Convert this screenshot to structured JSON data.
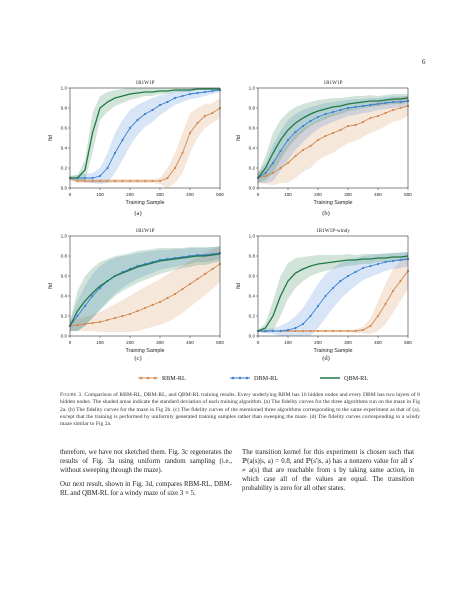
{
  "page": {
    "number": "6"
  },
  "legend": {
    "items": [
      {
        "label": "RBM-RL",
        "color": "#d4884d",
        "marker": "dot"
      },
      {
        "label": "DBM-RL",
        "color": "#3a7fd4",
        "marker": "dot"
      },
      {
        "label": "QBM-RL",
        "color": "#1f7a45",
        "marker": "none"
      }
    ]
  },
  "caption": {
    "label": "Figure 3.",
    "text": "Comparison of RBM-RL, DBM-RL, and QBM-RL training results. Every underlying RBM has 16 hidden nodes and every DBM has two layers of 8 hidden nodes. The shaded areas indicate the standard deviation of each training algorithm. (a) The fidelity curves for the three algorithms run on the maze in Fig 2a. (b) The fidelity curves for the maze in Fig 2b. (c) The fidelity curves of the mentioned three algorithms corresponding to the same experiment as that of (a), except that the training is performed by uniformly generated training samples rather than sweeping the maze. (d) The fidelity curves corresponding to a windy maze similar to Fig 2a."
  },
  "body": {
    "left": [
      "therefore, we have not sketched them. Fig. 3c regenerates the results of Fig. 3a using uniform random sampling (i.e., without sweeping through the maze).",
      "Our next result, shown in Fig. 3d, compares RBM-RL, DBM-RL and QBM-RL for a windy maze of size 3 × 5."
    ],
    "right": [
      "The transition kernel for this experiment is chosen such that ℙ(a(s)|s, a) = 0.8, and ℙ(s′|s, a) has a nonzero value for all s′ ≠ a(s) that are reachable from s by taking same action, in which case all of the values are equal. The transition probability is zero for all other states."
    ]
  },
  "chart_data": [
    {
      "panel_label": "(a)",
      "type": "line",
      "title": "1R1W1P",
      "xlabel": "Training Sample",
      "ylabel": "fid",
      "xlim": [
        0,
        500
      ],
      "ylim": [
        0,
        1.0
      ],
      "xticks": [
        "0",
        "100",
        "200",
        "300",
        "400",
        "500"
      ],
      "yticks": [
        "0.0",
        "0.2",
        "0.4",
        "0.6",
        "0.8",
        "1.0"
      ],
      "x": [
        0,
        25,
        50,
        75,
        100,
        125,
        150,
        175,
        200,
        225,
        250,
        275,
        300,
        325,
        350,
        375,
        400,
        425,
        450,
        475,
        500
      ],
      "series": [
        {
          "name": "RBM-RL",
          "values": [
            0.1,
            0.07,
            0.07,
            0.07,
            0.07,
            0.07,
            0.07,
            0.07,
            0.07,
            0.07,
            0.07,
            0.07,
            0.07,
            0.1,
            0.2,
            0.35,
            0.55,
            0.65,
            0.72,
            0.75,
            0.8
          ],
          "sd": [
            0.02,
            0.02,
            0.02,
            0.02,
            0.02,
            0.02,
            0.02,
            0.02,
            0.02,
            0.02,
            0.02,
            0.02,
            0.03,
            0.1,
            0.15,
            0.2,
            0.2,
            0.15,
            0.12,
            0.1,
            0.1
          ]
        },
        {
          "name": "DBM-RL",
          "values": [
            0.1,
            0.1,
            0.1,
            0.1,
            0.12,
            0.2,
            0.35,
            0.48,
            0.6,
            0.68,
            0.74,
            0.78,
            0.83,
            0.86,
            0.9,
            0.92,
            0.94,
            0.95,
            0.96,
            0.97,
            0.98
          ],
          "sd": [
            0.02,
            0.03,
            0.04,
            0.05,
            0.08,
            0.15,
            0.2,
            0.2,
            0.18,
            0.15,
            0.13,
            0.12,
            0.1,
            0.08,
            0.07,
            0.06,
            0.05,
            0.05,
            0.04,
            0.03,
            0.02
          ]
        },
        {
          "name": "QBM-RL",
          "values": [
            0.1,
            0.1,
            0.18,
            0.55,
            0.8,
            0.86,
            0.9,
            0.92,
            0.94,
            0.95,
            0.96,
            0.96,
            0.97,
            0.97,
            0.98,
            0.98,
            0.98,
            0.99,
            0.99,
            0.99,
            0.99
          ],
          "sd": [
            0.02,
            0.03,
            0.1,
            0.2,
            0.12,
            0.1,
            0.08,
            0.07,
            0.06,
            0.05,
            0.04,
            0.04,
            0.03,
            0.03,
            0.02,
            0.02,
            0.02,
            0.01,
            0.01,
            0.01,
            0.01
          ]
        }
      ]
    },
    {
      "panel_label": "(b)",
      "type": "line",
      "title": "1R1W1P",
      "xlabel": "Training Sample",
      "ylabel": "fid",
      "xlim": [
        0,
        500
      ],
      "ylim": [
        0,
        1.0
      ],
      "xticks": [
        "0",
        "100",
        "200",
        "300",
        "400",
        "500"
      ],
      "yticks": [
        "0.0",
        "0.2",
        "0.4",
        "0.6",
        "0.8",
        "1.0"
      ],
      "x": [
        0,
        25,
        50,
        75,
        100,
        125,
        150,
        175,
        200,
        225,
        250,
        275,
        300,
        325,
        350,
        375,
        400,
        425,
        450,
        475,
        500
      ],
      "series": [
        {
          "name": "RBM-RL",
          "values": [
            0.1,
            0.12,
            0.15,
            0.2,
            0.25,
            0.32,
            0.38,
            0.42,
            0.48,
            0.52,
            0.55,
            0.58,
            0.62,
            0.63,
            0.66,
            0.7,
            0.72,
            0.75,
            0.78,
            0.8,
            0.82
          ],
          "sd": [
            0.05,
            0.08,
            0.12,
            0.15,
            0.2,
            0.22,
            0.22,
            0.22,
            0.2,
            0.2,
            0.2,
            0.18,
            0.17,
            0.16,
            0.15,
            0.15,
            0.14,
            0.13,
            0.12,
            0.12,
            0.1
          ]
        },
        {
          "name": "DBM-RL",
          "values": [
            0.1,
            0.15,
            0.25,
            0.37,
            0.48,
            0.56,
            0.62,
            0.67,
            0.71,
            0.74,
            0.76,
            0.78,
            0.8,
            0.81,
            0.82,
            0.83,
            0.84,
            0.85,
            0.86,
            0.86,
            0.87
          ],
          "sd": [
            0.05,
            0.1,
            0.18,
            0.2,
            0.2,
            0.18,
            0.16,
            0.14,
            0.12,
            0.11,
            0.1,
            0.09,
            0.08,
            0.08,
            0.07,
            0.07,
            0.06,
            0.06,
            0.06,
            0.05,
            0.05
          ]
        },
        {
          "name": "QBM-RL",
          "values": [
            0.1,
            0.2,
            0.35,
            0.48,
            0.58,
            0.65,
            0.7,
            0.74,
            0.77,
            0.79,
            0.81,
            0.82,
            0.84,
            0.85,
            0.86,
            0.87,
            0.87,
            0.88,
            0.89,
            0.89,
            0.9
          ],
          "sd": [
            0.05,
            0.12,
            0.2,
            0.2,
            0.18,
            0.16,
            0.14,
            0.12,
            0.11,
            0.1,
            0.09,
            0.08,
            0.07,
            0.07,
            0.06,
            0.06,
            0.05,
            0.05,
            0.05,
            0.05,
            0.04
          ]
        }
      ]
    },
    {
      "panel_label": "(c)",
      "type": "line",
      "title": "1R1W1P",
      "xlabel": "Training Sample",
      "ylabel": "fid",
      "xlim": [
        0,
        500
      ],
      "ylim": [
        0,
        1.0
      ],
      "xticks": [
        "0",
        "100",
        "200",
        "300",
        "400",
        "500"
      ],
      "yticks": [
        "0.0",
        "0.2",
        "0.4",
        "0.6",
        "0.8",
        "1.0"
      ],
      "x": [
        0,
        25,
        50,
        75,
        100,
        125,
        150,
        175,
        200,
        225,
        250,
        275,
        300,
        325,
        350,
        375,
        400,
        425,
        450,
        475,
        500
      ],
      "series": [
        {
          "name": "RBM-RL",
          "values": [
            0.1,
            0.11,
            0.12,
            0.13,
            0.14,
            0.16,
            0.18,
            0.2,
            0.22,
            0.25,
            0.28,
            0.31,
            0.34,
            0.38,
            0.42,
            0.47,
            0.52,
            0.57,
            0.62,
            0.67,
            0.72
          ],
          "sd": [
            0.05,
            0.06,
            0.07,
            0.08,
            0.1,
            0.12,
            0.14,
            0.16,
            0.18,
            0.2,
            0.21,
            0.22,
            0.23,
            0.24,
            0.24,
            0.24,
            0.23,
            0.22,
            0.21,
            0.2,
            0.18
          ]
        },
        {
          "name": "DBM-RL",
          "values": [
            0.1,
            0.2,
            0.3,
            0.4,
            0.48,
            0.55,
            0.6,
            0.64,
            0.67,
            0.7,
            0.72,
            0.74,
            0.76,
            0.77,
            0.78,
            0.79,
            0.8,
            0.81,
            0.81,
            0.82,
            0.83
          ],
          "sd": [
            0.05,
            0.15,
            0.2,
            0.22,
            0.22,
            0.2,
            0.18,
            0.16,
            0.14,
            0.13,
            0.12,
            0.11,
            0.1,
            0.09,
            0.09,
            0.08,
            0.08,
            0.07,
            0.07,
            0.07,
            0.06
          ]
        },
        {
          "name": "QBM-RL",
          "values": [
            0.1,
            0.25,
            0.35,
            0.43,
            0.5,
            0.55,
            0.6,
            0.63,
            0.66,
            0.69,
            0.71,
            0.73,
            0.75,
            0.76,
            0.77,
            0.78,
            0.79,
            0.8,
            0.8,
            0.81,
            0.82
          ],
          "sd": [
            0.05,
            0.2,
            0.25,
            0.25,
            0.24,
            0.22,
            0.2,
            0.18,
            0.17,
            0.16,
            0.15,
            0.14,
            0.13,
            0.12,
            0.11,
            0.1,
            0.1,
            0.09,
            0.09,
            0.08,
            0.08
          ]
        }
      ]
    },
    {
      "panel_label": "(d)",
      "type": "line",
      "title": "1R1W1P-windy",
      "xlabel": "Training Sample",
      "ylabel": "fid",
      "xlim": [
        0,
        500
      ],
      "ylim": [
        0,
        1.0
      ],
      "xticks": [
        "0",
        "100",
        "200",
        "300",
        "400",
        "500"
      ],
      "yticks": [
        "0.0",
        "0.2",
        "0.4",
        "0.6",
        "0.8",
        "1.0"
      ],
      "x": [
        0,
        25,
        50,
        75,
        100,
        125,
        150,
        175,
        200,
        225,
        250,
        275,
        300,
        325,
        350,
        375,
        400,
        425,
        450,
        475,
        500
      ],
      "series": [
        {
          "name": "RBM-RL",
          "values": [
            0.05,
            0.05,
            0.05,
            0.05,
            0.05,
            0.05,
            0.05,
            0.05,
            0.05,
            0.05,
            0.05,
            0.05,
            0.05,
            0.05,
            0.06,
            0.1,
            0.2,
            0.32,
            0.45,
            0.55,
            0.65
          ],
          "sd": [
            0.01,
            0.01,
            0.01,
            0.01,
            0.01,
            0.01,
            0.01,
            0.01,
            0.01,
            0.01,
            0.01,
            0.01,
            0.01,
            0.02,
            0.03,
            0.08,
            0.15,
            0.2,
            0.22,
            0.2,
            0.18
          ]
        },
        {
          "name": "DBM-RL",
          "values": [
            0.05,
            0.05,
            0.05,
            0.05,
            0.06,
            0.08,
            0.12,
            0.2,
            0.3,
            0.4,
            0.48,
            0.55,
            0.6,
            0.64,
            0.68,
            0.7,
            0.72,
            0.74,
            0.75,
            0.76,
            0.77
          ],
          "sd": [
            0.01,
            0.02,
            0.03,
            0.05,
            0.08,
            0.12,
            0.16,
            0.2,
            0.22,
            0.22,
            0.2,
            0.18,
            0.16,
            0.14,
            0.12,
            0.11,
            0.1,
            0.09,
            0.08,
            0.08,
            0.07
          ]
        },
        {
          "name": "QBM-RL",
          "values": [
            0.05,
            0.08,
            0.2,
            0.4,
            0.55,
            0.63,
            0.67,
            0.7,
            0.72,
            0.73,
            0.74,
            0.75,
            0.76,
            0.76,
            0.77,
            0.77,
            0.78,
            0.78,
            0.79,
            0.79,
            0.8
          ],
          "sd": [
            0.01,
            0.05,
            0.15,
            0.2,
            0.18,
            0.15,
            0.12,
            0.1,
            0.09,
            0.08,
            0.07,
            0.06,
            0.06,
            0.05,
            0.05,
            0.05,
            0.04,
            0.04,
            0.04,
            0.04,
            0.04
          ]
        }
      ]
    }
  ]
}
